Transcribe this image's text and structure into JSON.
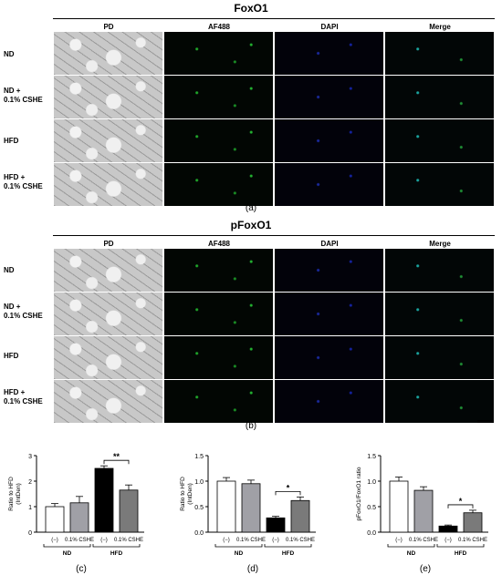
{
  "panel_top": {
    "title": "FoxO1",
    "columns": [
      "PD",
      "AF488",
      "DAPI",
      "Merge"
    ],
    "rows": [
      "ND",
      "ND +\n0.1% CSHE",
      "HFD",
      "HFD +\n0.1% CSHE"
    ],
    "label": "(a)"
  },
  "panel_bottom": {
    "title": "pFoxO1",
    "columns": [
      "PD",
      "AF488",
      "DAPI",
      "Merge"
    ],
    "rows": [
      "ND",
      "ND +\n0.1% CSHE",
      "HFD",
      "HFD +\n0.1% CSHE"
    ],
    "label": "(b)"
  },
  "colors": {
    "control_bar": "#ffffff",
    "treated_bar": "#a0a0a6",
    "hfd_control_bar": "#000000",
    "hfd_treated_bar": "#7a7a7a"
  },
  "chart_data": [
    {
      "type": "bar",
      "label": "(c)",
      "ylabel": "Ratio to HFD\n(IntDen)",
      "ylim": [
        0,
        3
      ],
      "yticks": [
        "0",
        "1",
        "2",
        "3"
      ],
      "categories": [
        "(−)",
        "0.1% CSHE",
        "(−)",
        "0.1% CSHE"
      ],
      "groups": [
        "ND",
        "HFD"
      ],
      "values": [
        1.0,
        1.15,
        2.5,
        1.65
      ],
      "errors": [
        0.12,
        0.25,
        0.1,
        0.2
      ],
      "significance": {
        "between": [
          2,
          3
        ],
        "text": "**"
      }
    },
    {
      "type": "bar",
      "label": "(d)",
      "ylabel": "Ratio to HFD\n(IntDen)",
      "ylim": [
        0,
        1.5
      ],
      "yticks": [
        "0.0",
        "0.5",
        "1.0",
        "1.5"
      ],
      "categories": [
        "(−)",
        "0.1% CSHE",
        "(−)",
        "0.1% CSHE"
      ],
      "groups": [
        "ND",
        "HFD"
      ],
      "values": [
        1.0,
        0.95,
        0.28,
        0.62
      ],
      "errors": [
        0.07,
        0.07,
        0.03,
        0.07
      ],
      "significance": {
        "between": [
          2,
          3
        ],
        "text": "*"
      }
    },
    {
      "type": "bar",
      "label": "(e)",
      "ylabel": "pFoxO1/FoxO1 ratio",
      "ylim": [
        0,
        1.5
      ],
      "yticks": [
        "0.0",
        "0.5",
        "1.0",
        "1.5"
      ],
      "categories": [
        "(−)",
        "0.1% CSHE",
        "(−)",
        "0.1% CSHE"
      ],
      "groups": [
        "ND",
        "HFD"
      ],
      "values": [
        1.0,
        0.82,
        0.12,
        0.38
      ],
      "errors": [
        0.08,
        0.07,
        0.02,
        0.05
      ],
      "significance": {
        "between": [
          2,
          3
        ],
        "text": "*"
      }
    }
  ]
}
